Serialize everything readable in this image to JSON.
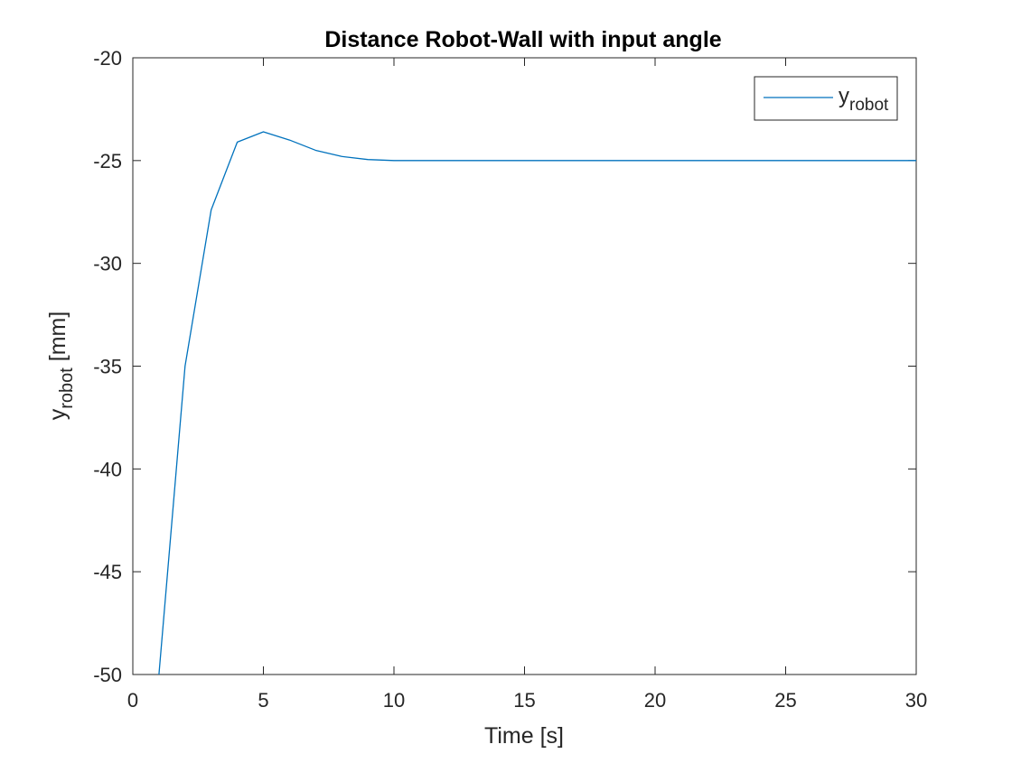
{
  "chart_data": {
    "type": "line",
    "title": "Distance Robot-Wall with input angle",
    "xlabel": "Time [s]",
    "ylabel": {
      "main": "y",
      "sub": "robot",
      "suffix": " [mm]"
    },
    "xlim": [
      0,
      30
    ],
    "ylim": [
      -50,
      -20
    ],
    "xticks": [
      0,
      5,
      10,
      15,
      20,
      25,
      30
    ],
    "yticks": [
      -50,
      -45,
      -40,
      -35,
      -30,
      -25,
      -20
    ],
    "grid": false,
    "legend_position": "top-right",
    "line_color": "#0072BD",
    "series": [
      {
        "legend": {
          "main": "y",
          "sub": "robot"
        },
        "x": [
          1,
          2,
          3,
          4,
          5,
          6,
          7,
          8,
          9,
          10,
          11,
          12,
          13,
          14,
          15,
          16,
          17,
          18,
          19,
          20,
          21,
          22,
          23,
          24,
          25,
          26,
          27,
          28,
          29,
          30
        ],
        "y": [
          -50,
          -35,
          -27.4,
          -24.1,
          -23.6,
          -24.0,
          -24.5,
          -24.8,
          -24.95,
          -25.0,
          -25.0,
          -25.0,
          -25.0,
          -25.0,
          -25.0,
          -25.0,
          -25.0,
          -25.0,
          -25.0,
          -25.0,
          -25.0,
          -25.0,
          -25.0,
          -25.0,
          -25.0,
          -25.0,
          -25.0,
          -25.0,
          -25.0,
          -25.0
        ]
      }
    ]
  }
}
